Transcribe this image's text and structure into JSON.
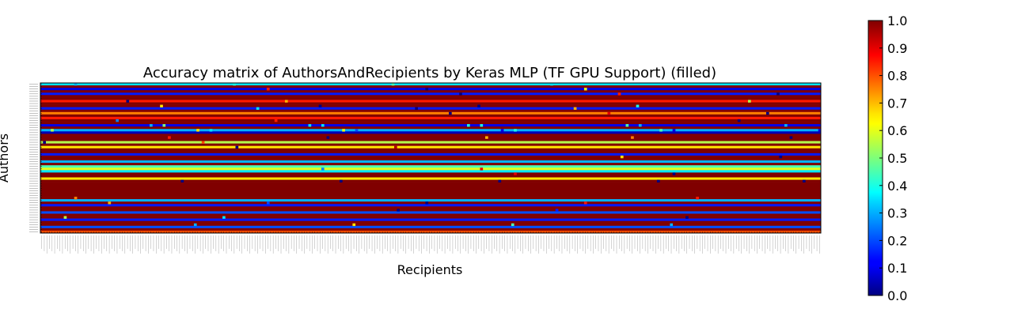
{
  "chart_data": {
    "type": "heatmap",
    "title": "Accuracy matrix of AuthorsAndRecipients by Keras MLP (TF GPU Support) (filled)",
    "xlabel": "Recipients",
    "ylabel": "Authors",
    "colormap": "jet",
    "colorbar": {
      "min": 0.0,
      "max": 1.0,
      "ticks": [
        "0.0",
        "0.1",
        "0.2",
        "0.3",
        "0.4",
        "0.5",
        "0.6",
        "0.7",
        "0.8",
        "0.9",
        "1.0"
      ]
    },
    "row_count": 62,
    "col_count": 300,
    "row_base_values": [
      0.35,
      1.0,
      0.1,
      1.0,
      0.15,
      1.0,
      1.0,
      0.85,
      1.0,
      1.0,
      0.15,
      1.0,
      0.75,
      1.0,
      0.85,
      1.0,
      1.0,
      0.1,
      1.0,
      0.3,
      0.05,
      1.0,
      1.0,
      1.0,
      0.55,
      1.0,
      0.65,
      1.0,
      1.0,
      0.15,
      1.0,
      1.0,
      0.3,
      1.0,
      0.45,
      0.6,
      0.35,
      1.0,
      1.0,
      0.65,
      1.0,
      1.0,
      1.0,
      1.0,
      1.0,
      1.0,
      1.0,
      1.0,
      0.3,
      1.0,
      0.15,
      1.0,
      1.0,
      0.2,
      1.0,
      1.0,
      0.15,
      1.0,
      1.0,
      0.2,
      1.0,
      0.8
    ],
    "outliers": [
      {
        "row": 0,
        "values": [
          0.3,
          0.4,
          0.45,
          0.35
        ]
      },
      {
        "row": 2,
        "values": [
          0.85,
          0.0,
          0.6
        ]
      },
      {
        "row": 4,
        "values": [
          0.0,
          0.85,
          0.0
        ]
      },
      {
        "row": 7,
        "values": [
          0.55,
          0.0,
          0.7
        ]
      },
      {
        "row": 9,
        "values": [
          0.65,
          0.0,
          0.0,
          0.4
        ]
      },
      {
        "row": 10,
        "values": [
          0.35,
          0.0,
          0.7
        ]
      },
      {
        "row": 12,
        "values": [
          0.0,
          0.9,
          0.0
        ]
      },
      {
        "row": 15,
        "values": [
          0.0,
          0.25,
          0.85
        ]
      },
      {
        "row": 17,
        "values": [
          0.3,
          0.35,
          0.4,
          0.45,
          0.3,
          0.5,
          0.35,
          0.4,
          0.3
        ]
      },
      {
        "row": 19,
        "values": [
          0.6,
          0.1,
          0.45,
          0.1,
          0.65,
          0.2,
          0.4,
          0.1,
          0.55,
          0.35
        ]
      },
      {
        "row": 22,
        "values": [
          0.75,
          0.0,
          0.85,
          0.0,
          0.7
        ]
      },
      {
        "row": 24,
        "values": [
          0.0,
          0.8
        ]
      },
      {
        "row": 26,
        "values": [
          0.0,
          0.95
        ]
      },
      {
        "row": 30,
        "values": [
          0.65,
          0.0
        ]
      },
      {
        "row": 35,
        "values": [
          0.25,
          0.9
        ]
      },
      {
        "row": 37,
        "values": [
          0.9,
          0.0
        ]
      },
      {
        "row": 40,
        "values": [
          0.0,
          0.0,
          0.0,
          0.0,
          0.0
        ]
      },
      {
        "row": 47,
        "values": [
          0.85,
          0.75
        ]
      },
      {
        "row": 49,
        "values": [
          0.7,
          0.2,
          0.0,
          0.85
        ]
      },
      {
        "row": 52,
        "values": [
          0.0,
          0.15
        ]
      },
      {
        "row": 55,
        "values": [
          0.0,
          0.55,
          0.35
        ]
      },
      {
        "row": 58,
        "values": [
          0.3,
          0.65,
          0.45,
          0.3
        ]
      }
    ],
    "grid": false,
    "legend": "none"
  }
}
